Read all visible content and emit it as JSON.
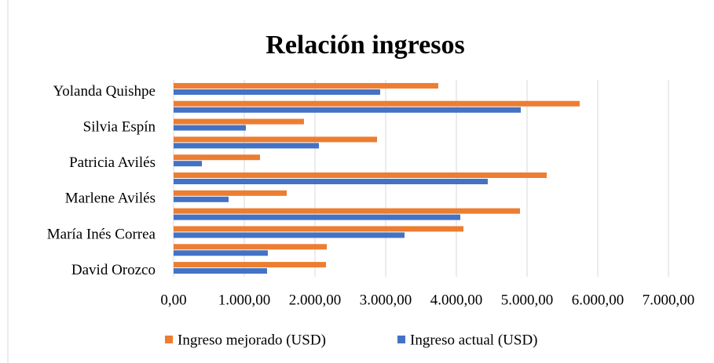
{
  "chart_data": {
    "type": "bar",
    "orientation": "horizontal",
    "title": "Relación ingresos",
    "categories": [
      "David Orozco",
      null,
      "María Inés Correa",
      null,
      "Marlene Avilés",
      null,
      "Patricia Avilés",
      null,
      "Silvia Espín",
      null,
      "Yolanda Quishpe"
    ],
    "series": [
      {
        "name": "Ingreso mejorado (USD)",
        "color": "#ed7d31",
        "values": [
          2156,
          2167,
          4100,
          4900,
          1600,
          5278,
          1222,
          2878,
          1844,
          5744,
          3744
        ]
      },
      {
        "name": "Ingreso actual (USD)",
        "color": "#4472c4",
        "values": [
          1322,
          1333,
          3267,
          4056,
          778,
          4444,
          400,
          2056,
          1022,
          4911,
          2922
        ]
      }
    ],
    "xlim": [
      0,
      7000
    ],
    "xticks": [
      {
        "value": 0,
        "label": "0,00"
      },
      {
        "value": 1000,
        "label": "1.000,00"
      },
      {
        "value": 2000,
        "label": "2.000,00"
      },
      {
        "value": 3000,
        "label": "3.000,00"
      },
      {
        "value": 4000,
        "label": "4.000,00"
      },
      {
        "value": 5000,
        "label": "5.000,00"
      },
      {
        "value": 6000,
        "label": "6.000,00"
      },
      {
        "value": 7000,
        "label": "7.000,00"
      }
    ],
    "grid": true,
    "legend": "bottom"
  }
}
